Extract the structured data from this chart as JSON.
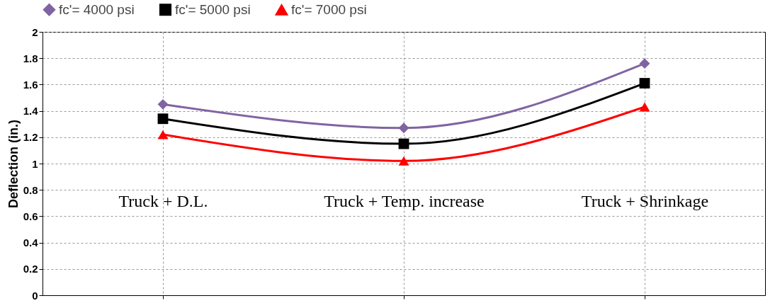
{
  "chart_data": {
    "type": "line",
    "ylabel": "Deflection (in.)",
    "categories": [
      "Truck + D.L.",
      "Truck + Temp. increase",
      "Truck + Shrinkage"
    ],
    "series": [
      {
        "name": "fc'= 4000 psi",
        "color": "#8064a2",
        "marker": "diamond",
        "values": [
          1.45,
          1.27,
          1.76
        ]
      },
      {
        "name": "fc'= 5000 psi",
        "color": "#000000",
        "marker": "square",
        "values": [
          1.34,
          1.15,
          1.61
        ]
      },
      {
        "name": "fc'= 7000 psi",
        "color": "#ff0000",
        "marker": "triangle",
        "values": [
          1.22,
          1.02,
          1.43
        ]
      }
    ],
    "ylim": [
      0,
      2
    ],
    "yticks": [
      0,
      0.2,
      0.4,
      0.6,
      0.8,
      1,
      1.2,
      1.4,
      1.6,
      1.8,
      2
    ],
    "grid": true,
    "legend": "top",
    "line_style": "solid"
  }
}
